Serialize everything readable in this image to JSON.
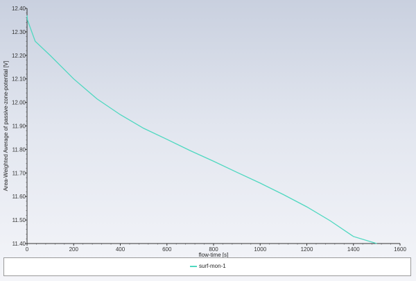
{
  "chart_data": {
    "type": "line",
    "xlabel": "flow-time [s]",
    "ylabel": "Area-Weighted Average of passive-zone-potential [V]",
    "xlim": [
      0,
      1600
    ],
    "ylim": [
      11.4,
      12.4
    ],
    "x_ticks": [
      "0",
      "200",
      "400",
      "600",
      "800",
      "1000",
      "1200",
      "1400",
      "1600"
    ],
    "y_ticks": [
      "11.40",
      "11.50",
      "11.60",
      "11.70",
      "11.80",
      "11.90",
      "12.00",
      "12.10",
      "12.20",
      "12.30",
      "12.40"
    ],
    "grid": false,
    "legend_placement": "bottom",
    "series": [
      {
        "name": "surf-mon-1",
        "color": "#4fd8c0",
        "x": [
          0,
          2,
          35,
          100,
          200,
          300,
          400,
          500,
          600,
          700,
          800,
          900,
          1000,
          1100,
          1200,
          1300,
          1400,
          1500
        ],
        "y": [
          12.37,
          12.35,
          12.26,
          12.199,
          12.1,
          12.015,
          11.948,
          11.89,
          11.843,
          11.795,
          11.75,
          11.703,
          11.657,
          11.608,
          11.556,
          11.497,
          11.43,
          11.4
        ]
      }
    ]
  }
}
